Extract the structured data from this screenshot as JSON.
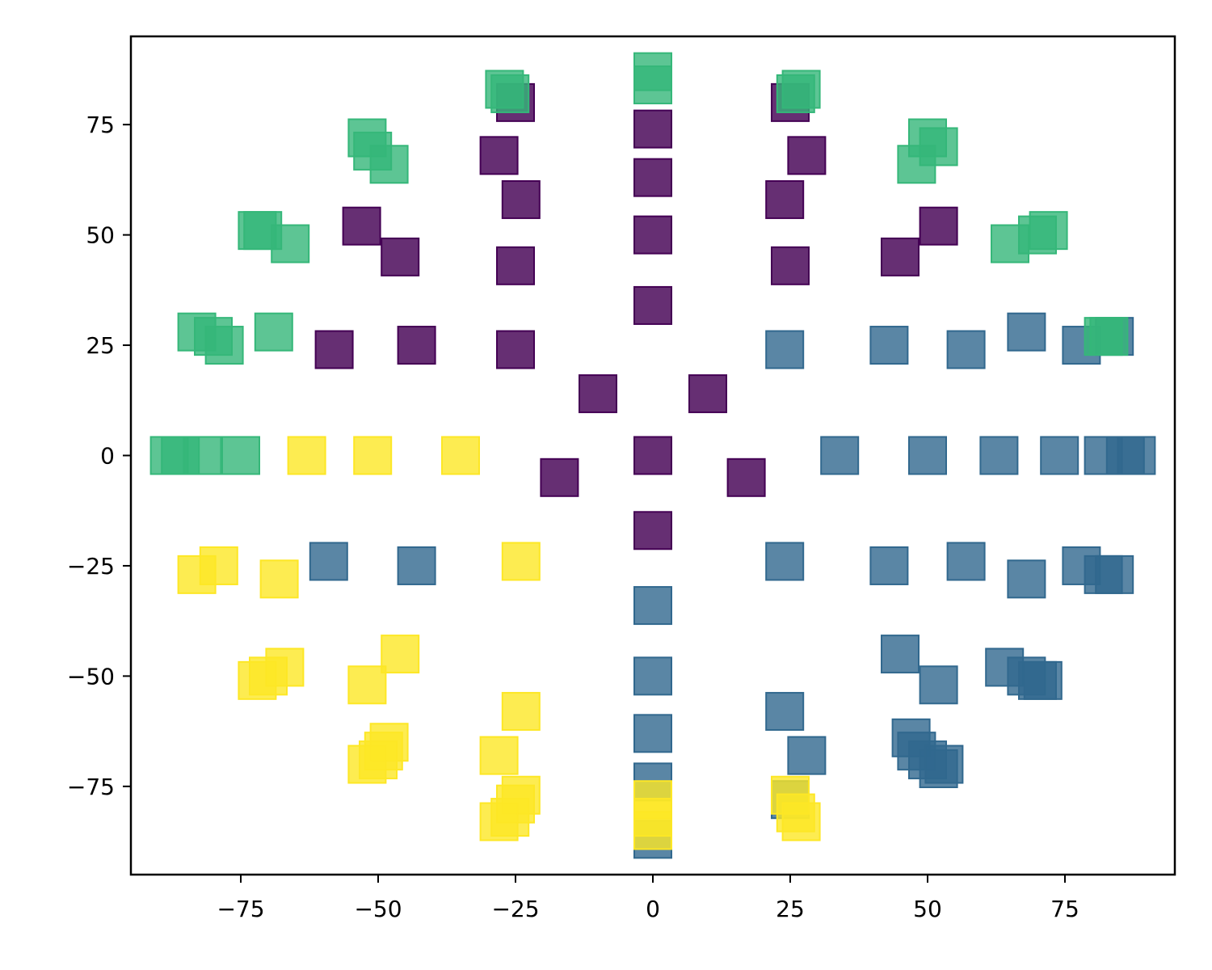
{
  "chart_data": {
    "type": "scatter",
    "title": "",
    "xlabel": "",
    "ylabel": "",
    "marker": "square",
    "xlim": [
      -95,
      95
    ],
    "ylim": [
      -95,
      95
    ],
    "xticks": [
      -75,
      -50,
      -25,
      0,
      25,
      50,
      75
    ],
    "yticks": [
      -75,
      -50,
      -25,
      0,
      25,
      50,
      75
    ],
    "xtick_labels": [
      "−75",
      "−50",
      "−25",
      "0",
      "25",
      "50",
      "75"
    ],
    "ytick_labels": [
      "−75",
      "−50",
      "−25",
      "0",
      "25",
      "50",
      "75"
    ],
    "grid": false,
    "series": [
      {
        "color": "#440154",
        "opacity": 0.82,
        "points": [
          [
            -25,
            80
          ],
          [
            -28,
            68
          ],
          [
            -24,
            58
          ],
          [
            -25,
            43
          ],
          [
            -25,
            24
          ],
          [
            -53,
            52
          ],
          [
            -46,
            45
          ],
          [
            -58,
            24
          ],
          [
            -43,
            25
          ],
          [
            -10,
            14
          ],
          [
            -17,
            -5
          ],
          [
            0,
            74
          ],
          [
            0,
            63
          ],
          [
            0,
            50
          ],
          [
            0,
            34
          ],
          [
            0,
            0
          ],
          [
            0,
            -17
          ],
          [
            10,
            14
          ],
          [
            17,
            -5
          ],
          [
            25,
            80
          ],
          [
            28,
            68
          ],
          [
            24,
            58
          ],
          [
            25,
            43
          ],
          [
            45,
            45
          ],
          [
            52,
            52
          ]
        ]
      },
      {
        "color": "#31688e",
        "opacity": 0.8,
        "points": [
          [
            -59,
            -24
          ],
          [
            -43,
            -25
          ],
          [
            0,
            -34
          ],
          [
            0,
            -50
          ],
          [
            0,
            -63
          ],
          [
            0,
            -74
          ],
          [
            0,
            -87
          ],
          [
            24,
            24
          ],
          [
            43,
            25
          ],
          [
            57,
            24
          ],
          [
            68,
            28
          ],
          [
            78,
            25
          ],
          [
            84,
            27
          ],
          [
            34,
            0
          ],
          [
            50,
            0
          ],
          [
            63,
            0
          ],
          [
            74,
            0
          ],
          [
            82,
            0
          ],
          [
            86,
            0
          ],
          [
            88,
            0
          ],
          [
            24,
            -24
          ],
          [
            43,
            -25
          ],
          [
            57,
            -24
          ],
          [
            68,
            -28
          ],
          [
            78,
            -25
          ],
          [
            82,
            -27
          ],
          [
            84,
            -27
          ],
          [
            24,
            -58
          ],
          [
            28,
            -68
          ],
          [
            25,
            -78
          ],
          [
            45,
            -45
          ],
          [
            52,
            -52
          ],
          [
            64,
            -48
          ],
          [
            68,
            -50
          ],
          [
            70,
            -51
          ],
          [
            71,
            -51
          ],
          [
            47,
            -64
          ],
          [
            48,
            -67
          ],
          [
            50,
            -69
          ],
          [
            52,
            -71
          ],
          [
            53,
            -70
          ]
        ]
      },
      {
        "color": "#35b779",
        "opacity": 0.8,
        "points": [
          [
            -27,
            83
          ],
          [
            -26,
            82
          ],
          [
            -52,
            72
          ],
          [
            -51,
            69
          ],
          [
            -48,
            66
          ],
          [
            -72,
            51
          ],
          [
            -71,
            51
          ],
          [
            -66,
            48
          ],
          [
            -83,
            28
          ],
          [
            -80,
            27
          ],
          [
            -78,
            25
          ],
          [
            -69,
            28
          ],
          [
            -88,
            0
          ],
          [
            -86,
            0
          ],
          [
            -82,
            0
          ],
          [
            -75,
            0
          ],
          [
            0,
            87
          ],
          [
            0,
            84
          ],
          [
            27,
            83
          ],
          [
            26,
            82
          ],
          [
            50,
            72
          ],
          [
            52,
            70
          ],
          [
            48,
            66
          ],
          [
            72,
            51
          ],
          [
            70,
            50
          ],
          [
            65,
            48
          ],
          [
            83,
            27
          ],
          [
            82,
            27
          ]
        ]
      },
      {
        "color": "#fde725",
        "opacity": 0.8,
        "points": [
          [
            -63,
            0
          ],
          [
            -51,
            0
          ],
          [
            -35,
            0
          ],
          [
            -83,
            -27
          ],
          [
            -79,
            -25
          ],
          [
            -68,
            -28
          ],
          [
            -24,
            -24
          ],
          [
            -72,
            -51
          ],
          [
            -70,
            -50
          ],
          [
            -67,
            -48
          ],
          [
            -52,
            -52
          ],
          [
            -46,
            -45
          ],
          [
            -24,
            -58
          ],
          [
            -28,
            -68
          ],
          [
            -48,
            -65
          ],
          [
            -49,
            -67
          ],
          [
            -50,
            -69
          ],
          [
            -52,
            -70
          ],
          [
            -24,
            -77
          ],
          [
            -25,
            -79
          ],
          [
            -26,
            -82
          ],
          [
            -28,
            -83
          ],
          [
            0,
            -78
          ],
          [
            0,
            -82
          ],
          [
            0,
            -85
          ],
          [
            25,
            -77
          ],
          [
            26,
            -81
          ],
          [
            27,
            -83
          ]
        ]
      }
    ]
  }
}
